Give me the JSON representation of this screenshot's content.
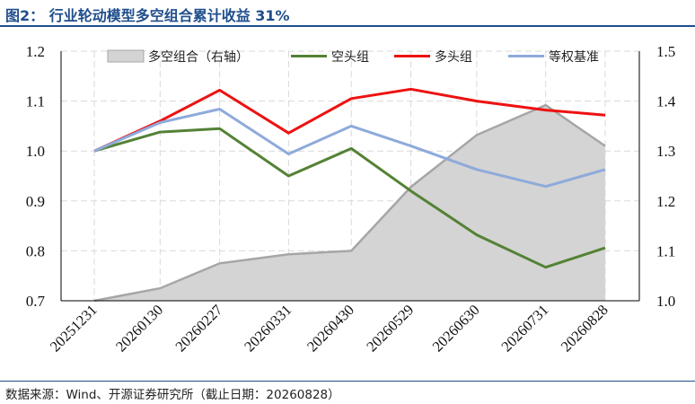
{
  "title": "图2：  行业轮动模型多空组合累计收益 31%",
  "source": "数据来源：Wind、开源证券研究所（截止日期：20260828）",
  "chart_data": {
    "type": "line",
    "categories": [
      "20251231",
      "20260130",
      "20260227",
      "20260331",
      "20260430",
      "20260529",
      "20260630",
      "20260731",
      "20260828"
    ],
    "x": [
      0,
      21,
      40,
      62,
      82,
      101,
      122,
      144,
      163
    ],
    "y_left": {
      "ylim": [
        0.7,
        1.2
      ],
      "ticks": [
        "0.7",
        "0.8",
        "0.9",
        "1.0",
        "1.1",
        "1.2"
      ]
    },
    "y_right": {
      "ylim": [
        1.0,
        1.5
      ],
      "ticks": [
        "1.0",
        "1.1",
        "1.2",
        "1.3",
        "1.4",
        "1.5"
      ]
    },
    "grid": true,
    "legend_position": "top",
    "series": [
      {
        "name": "多空组合（右轴）",
        "kind": "area",
        "axis": "right",
        "color": "#d4d4d4",
        "edge": "#a6a6a6",
        "values": [
          1.0,
          1.025,
          1.075,
          1.093,
          1.1,
          1.228,
          1.332,
          1.392,
          1.31
        ]
      },
      {
        "name": "空头组",
        "kind": "line",
        "axis": "left",
        "color": "#548235",
        "values": [
          1.0,
          1.038,
          1.045,
          0.95,
          1.005,
          0.92,
          0.832,
          0.767,
          0.806
        ]
      },
      {
        "name": "多头组",
        "kind": "line",
        "axis": "left",
        "color": "#ee1111",
        "values": [
          1.0,
          1.06,
          1.122,
          1.036,
          1.105,
          1.124,
          1.1,
          1.082,
          1.072
        ]
      },
      {
        "name": "等权基准",
        "kind": "line",
        "axis": "left",
        "color": "#8eaadb",
        "values": [
          1.0,
          1.057,
          1.084,
          0.994,
          1.05,
          1.01,
          0.963,
          0.929,
          0.963
        ]
      }
    ]
  }
}
